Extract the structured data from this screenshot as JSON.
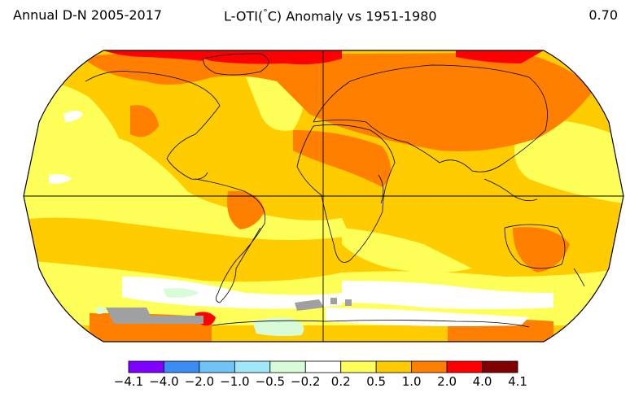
{
  "header": {
    "left": "Annual D-N 2005-2017",
    "center_prefix": "L-OTI(",
    "center_unit": "°C",
    "center_suffix": ") Anomaly vs 1951-1980",
    "right": "0.70"
  },
  "legend": {
    "bins": [
      {
        "color": "#8000ff"
      },
      {
        "color": "#3b8cf5"
      },
      {
        "color": "#6fc3f5"
      },
      {
        "color": "#a0e8f8"
      },
      {
        "color": "#d8fcd8"
      },
      {
        "color": "#ffffff"
      },
      {
        "color": "#ffff5a"
      },
      {
        "color": "#ffcc00"
      },
      {
        "color": "#ff8000"
      },
      {
        "color": "#ff0000"
      },
      {
        "color": "#800000"
      }
    ],
    "ticks": [
      "−4.1",
      "−4.0",
      "−2.0",
      "−1.0",
      "−0.5",
      "−0.2",
      "0.2",
      "0.5",
      "1.0",
      "2.0",
      "4.0",
      "4.1"
    ]
  },
  "map": {
    "projection": "Robinson",
    "colors": {
      "base": "#ffcc00",
      "warm": "#ff8000",
      "hot": "#ff0000",
      "mild": "#ffff5a",
      "neutral": "#ffffff",
      "cool": "#d8fcd8",
      "missing": "#a0a0a0"
    }
  }
}
